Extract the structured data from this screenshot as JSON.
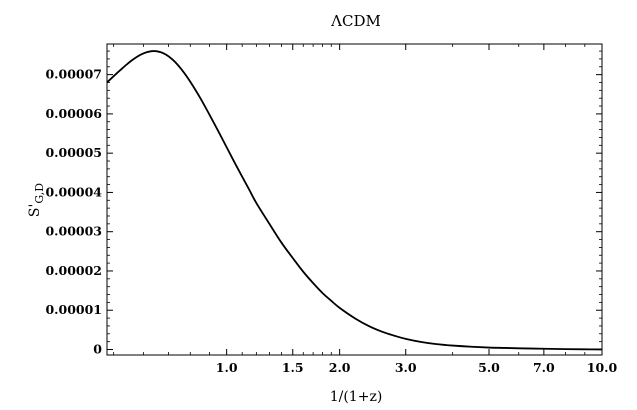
{
  "chart_data": {
    "type": "line",
    "title": "ΛCDM",
    "xlabel": "1/(1+z)",
    "ylabel_main": "S'",
    "ylabel_sub": "G,D",
    "x_scale": "log",
    "xlim": [
      0.48,
      10.0
    ],
    "ylim": [
      -1.4e-06,
      7.78e-05
    ],
    "grid": false,
    "x_ticks": [
      {
        "value": 1.0,
        "label": "1.0"
      },
      {
        "value": 1.5,
        "label": "1.5"
      },
      {
        "value": 2.0,
        "label": "2.0"
      },
      {
        "value": 3.0,
        "label": "3.0"
      },
      {
        "value": 5.0,
        "label": "5.0"
      },
      {
        "value": 7.0,
        "label": "7.0"
      },
      {
        "value": 10.0,
        "label": "10.0"
      }
    ],
    "y_ticks": [
      {
        "value": 0,
        "label": "0"
      },
      {
        "value": 1e-05,
        "label": "0.00001"
      },
      {
        "value": 2e-05,
        "label": "0.00002"
      },
      {
        "value": 3e-05,
        "label": "0.00003"
      },
      {
        "value": 4e-05,
        "label": "0.00004"
      },
      {
        "value": 5e-05,
        "label": "0.00005"
      },
      {
        "value": 6e-05,
        "label": "0.00006"
      },
      {
        "value": 7e-05,
        "label": "0.00007"
      }
    ],
    "series": [
      {
        "color": "#000000",
        "x": [
          0.48,
          0.52,
          0.56,
          0.6,
          0.64,
          0.68,
          0.72,
          0.76,
          0.8,
          0.85,
          0.9,
          0.95,
          1.0,
          1.05,
          1.1,
          1.15,
          1.2,
          1.3,
          1.4,
          1.5,
          1.6,
          1.7,
          1.8,
          1.9,
          2.0,
          2.2,
          2.4,
          2.6,
          2.8,
          3.0,
          3.3,
          3.6,
          4.0,
          4.5,
          5.0,
          5.5,
          6.0,
          7.0,
          8.0,
          9.0,
          10.0
        ],
        "y": [
          6.8e-05,
          7.11e-05,
          7.37e-05,
          7.54e-05,
          7.6e-05,
          7.54e-05,
          7.37e-05,
          7.12e-05,
          6.82e-05,
          6.41e-05,
          5.98e-05,
          5.56e-05,
          5.15e-05,
          4.76e-05,
          4.4e-05,
          4.06e-05,
          3.73e-05,
          3.2e-05,
          2.72e-05,
          2.33e-05,
          1.98e-05,
          1.69e-05,
          1.44e-05,
          1.24e-05,
          1.06e-05,
          7.9e-06,
          5.9e-06,
          4.5e-06,
          3.5e-06,
          2.7e-06,
          1.9e-06,
          1.4e-06,
          1e-06,
          7e-07,
          5e-07,
          4e-07,
          3e-07,
          2e-07,
          1e-07,
          5e-08,
          2e-08
        ]
      }
    ]
  }
}
